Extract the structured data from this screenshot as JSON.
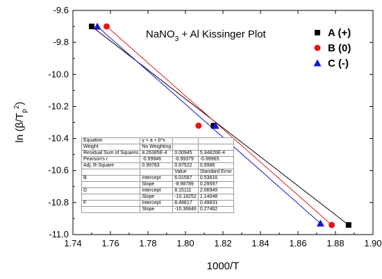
{
  "chart_data": {
    "type": "scatter",
    "title": "NaNO3 + Al  Kissinger Plot",
    "xlabel": "1000/T",
    "ylabel": "ln (β/Tp2)",
    "xlim": [
      1.74,
      1.9
    ],
    "ylim": [
      -11.0,
      -9.6
    ],
    "x_ticks": [
      "1.74",
      "1.76",
      "1.78",
      "1.80",
      "1.82",
      "1.84",
      "1.86",
      "1.88",
      "1.90"
    ],
    "y_ticks": [
      "-9.6",
      "-9.8",
      "-10.0",
      "-10.2",
      "-10.4",
      "-10.6",
      "-10.8",
      "-11.0"
    ],
    "legend_position": "top-right",
    "grid": false,
    "series": [
      {
        "name": "A (+)",
        "marker": "square",
        "color": "#000000",
        "x": [
          1.75,
          1.815,
          1.887
        ],
        "y": [
          -9.7,
          -10.32,
          -10.94
        ],
        "fit": {
          "intercept": 6.01587,
          "slope": -8.98789
        }
      },
      {
        "name": "B (0)",
        "marker": "circle",
        "color": "#e8141b",
        "x": [
          1.758,
          1.807,
          1.878
        ],
        "y": [
          -9.7,
          -10.32,
          -10.94
        ],
        "fit": {
          "intercept": 8.15111,
          "slope": -10.18252
        }
      },
      {
        "name": "C (-)",
        "marker": "triangle",
        "color": "#1414d2",
        "x": [
          1.753,
          1.816,
          1.872
        ],
        "y": [
          -9.7,
          -10.32,
          -10.93
        ],
        "fit": {
          "intercept": 8.48817,
          "slope": -10.36846
        }
      }
    ],
    "fit_table": {
      "rows": [
        [
          "Equation",
          "y = a + b*x",
          "",
          ""
        ],
        [
          "Weight",
          "No Weighting",
          "",
          ""
        ],
        [
          "Residual Sum of Squares",
          "8.26385E-4",
          "0.00945",
          "5.34826E-4"
        ],
        [
          "Pearson's r",
          "-0.99946",
          "-0.99379",
          "-0.99965"
        ],
        [
          "Adj. R-Square",
          "0.99783",
          "0.97522",
          "0.9986"
        ]
      ],
      "param_header": [
        "",
        "",
        "Value",
        "Standard Error"
      ],
      "param_rows": [
        [
          "B",
          "Intercept",
          "6.01587",
          "0.53816"
        ],
        [
          "",
          "Slope",
          "-8.98789",
          "0.29597"
        ],
        [
          "D",
          "Intercept",
          "8.15111",
          "2.06949"
        ],
        [
          "",
          "Slope",
          "-10.18252",
          "1.14048"
        ],
        [
          "F",
          "Intercept",
          "8.48817",
          "0.49831"
        ],
        [
          "",
          "Slope",
          "-10.36846",
          "0.27462"
        ]
      ]
    }
  }
}
